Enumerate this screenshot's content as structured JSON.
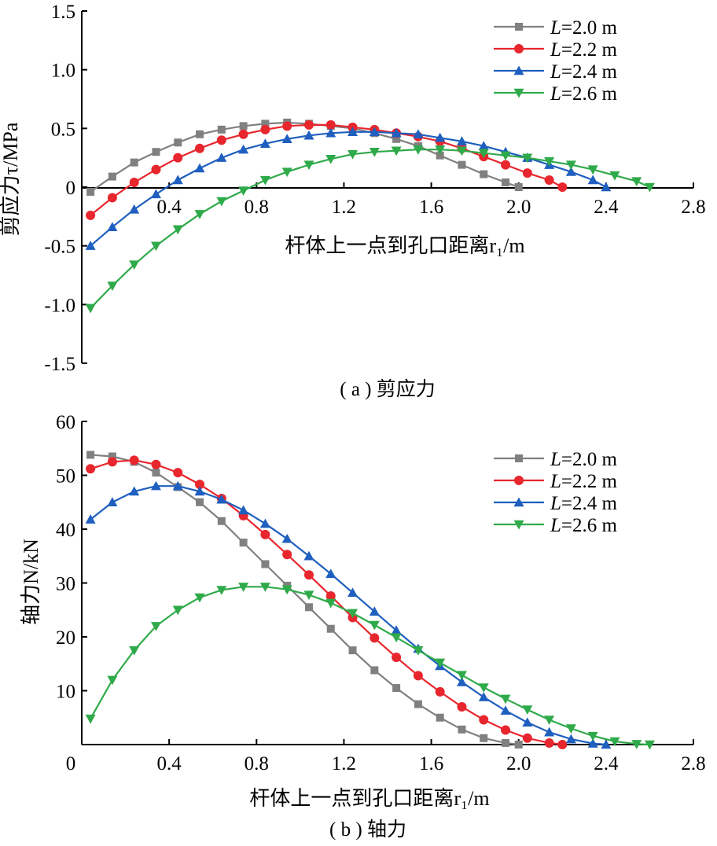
{
  "chart_data": [
    {
      "type": "line",
      "caption": "( a ) 剪应力",
      "xlabel": "杆体上一点到孔口距离r₁/m",
      "ylabel": "剪应力τ/MPa",
      "xlim": [
        0,
        2.8
      ],
      "ylim": [
        -1.5,
        1.5
      ],
      "xticks": [
        "0.4",
        "0.8",
        "1.2",
        "1.6",
        "2.0",
        "2.4",
        "2.8"
      ],
      "yticks": [
        "1.5",
        "1.0",
        "0.5",
        "0",
        "-0.5",
        "-1.0",
        "-1.5"
      ],
      "legend_position": "top-right",
      "series": [
        {
          "name": "L=2.0 m",
          "color": "#808080",
          "marker": "square",
          "x": [
            0.04,
            0.14,
            0.24,
            0.34,
            0.44,
            0.54,
            0.64,
            0.74,
            0.84,
            0.94,
            1.04,
            1.14,
            1.24,
            1.34,
            1.44,
            1.54,
            1.64,
            1.74,
            1.84,
            1.94,
            2.0
          ],
          "y": [
            -0.04,
            0.09,
            0.21,
            0.3,
            0.38,
            0.45,
            0.49,
            0.52,
            0.54,
            0.55,
            0.54,
            0.52,
            0.5,
            0.46,
            0.41,
            0.35,
            0.27,
            0.19,
            0.11,
            0.04,
            0.0
          ]
        },
        {
          "name": "L=2.2 m",
          "color": "#e8262d",
          "marker": "circle",
          "x": [
            0.04,
            0.14,
            0.24,
            0.34,
            0.44,
            0.54,
            0.64,
            0.74,
            0.84,
            0.94,
            1.04,
            1.14,
            1.24,
            1.34,
            1.44,
            1.54,
            1.64,
            1.74,
            1.84,
            1.94,
            2.04,
            2.14,
            2.2
          ],
          "y": [
            -0.24,
            -0.09,
            0.04,
            0.15,
            0.25,
            0.33,
            0.4,
            0.45,
            0.49,
            0.52,
            0.53,
            0.53,
            0.51,
            0.49,
            0.46,
            0.43,
            0.39,
            0.33,
            0.26,
            0.19,
            0.12,
            0.06,
            0.0
          ]
        },
        {
          "name": "L=2.4 m",
          "color": "#1f5fbf",
          "marker": "triangle-up",
          "x": [
            0.04,
            0.14,
            0.24,
            0.34,
            0.44,
            0.54,
            0.64,
            0.74,
            0.84,
            0.94,
            1.04,
            1.14,
            1.24,
            1.34,
            1.44,
            1.54,
            1.64,
            1.74,
            1.84,
            1.94,
            2.04,
            2.14,
            2.24,
            2.34,
            2.4
          ],
          "y": [
            -0.5,
            -0.34,
            -0.19,
            -0.06,
            0.06,
            0.16,
            0.25,
            0.32,
            0.37,
            0.41,
            0.44,
            0.46,
            0.47,
            0.47,
            0.46,
            0.45,
            0.42,
            0.39,
            0.35,
            0.3,
            0.25,
            0.19,
            0.13,
            0.06,
            0.0
          ]
        },
        {
          "name": "L=2.6 m",
          "color": "#2faa4a",
          "marker": "triangle-down",
          "x": [
            0.04,
            0.14,
            0.24,
            0.34,
            0.44,
            0.54,
            0.64,
            0.74,
            0.84,
            0.94,
            1.04,
            1.14,
            1.24,
            1.34,
            1.44,
            1.54,
            1.64,
            1.74,
            1.84,
            1.94,
            2.04,
            2.14,
            2.24,
            2.34,
            2.44,
            2.54,
            2.6
          ],
          "y": [
            -1.03,
            -0.84,
            -0.66,
            -0.5,
            -0.36,
            -0.23,
            -0.12,
            -0.03,
            0.06,
            0.13,
            0.19,
            0.24,
            0.28,
            0.3,
            0.31,
            0.32,
            0.32,
            0.31,
            0.29,
            0.27,
            0.25,
            0.22,
            0.19,
            0.15,
            0.1,
            0.05,
            0.0
          ]
        }
      ]
    },
    {
      "type": "line",
      "caption": "( b ) 轴力",
      "xlabel": "杆体上一点到孔口距离r₁/m",
      "ylabel": "轴力N/kN",
      "xlim": [
        0,
        2.8
      ],
      "ylim": [
        0,
        60
      ],
      "xticks": [
        "0",
        "0.4",
        "0.8",
        "1.2",
        "1.6",
        "2.0",
        "2.4",
        "2.8"
      ],
      "yticks": [
        "60",
        "50",
        "40",
        "30",
        "20",
        "10"
      ],
      "legend_position": "top-right",
      "series": [
        {
          "name": "L=2.0 m",
          "color": "#808080",
          "marker": "square",
          "x": [
            0.04,
            0.14,
            0.24,
            0.34,
            0.44,
            0.54,
            0.64,
            0.74,
            0.84,
            0.94,
            1.04,
            1.14,
            1.24,
            1.34,
            1.44,
            1.54,
            1.64,
            1.74,
            1.84,
            1.94,
            2.0
          ],
          "y": [
            53.8,
            53.5,
            52.5,
            50.5,
            47.8,
            45.0,
            41.5,
            37.5,
            33.5,
            29.5,
            25.5,
            21.5,
            17.5,
            13.8,
            10.5,
            7.5,
            5.0,
            2.8,
            1.2,
            0.3,
            0.0
          ]
        },
        {
          "name": "L=2.2 m",
          "color": "#e8262d",
          "marker": "circle",
          "x": [
            0.04,
            0.14,
            0.24,
            0.34,
            0.44,
            0.54,
            0.64,
            0.74,
            0.84,
            0.94,
            1.04,
            1.14,
            1.24,
            1.34,
            1.44,
            1.54,
            1.64,
            1.74,
            1.84,
            1.94,
            2.04,
            2.14,
            2.2
          ],
          "y": [
            51.2,
            52.5,
            52.8,
            52.0,
            50.5,
            48.3,
            45.7,
            42.5,
            39.0,
            35.3,
            31.5,
            27.6,
            23.6,
            19.8,
            16.2,
            12.8,
            9.8,
            7.0,
            4.6,
            2.7,
            1.2,
            0.3,
            0.0
          ]
        },
        {
          "name": "L=2.4 m",
          "color": "#1f5fbf",
          "marker": "triangle-up",
          "x": [
            0.04,
            0.14,
            0.24,
            0.34,
            0.44,
            0.54,
            0.64,
            0.74,
            0.84,
            0.94,
            1.04,
            1.14,
            1.24,
            1.34,
            1.44,
            1.54,
            1.64,
            1.74,
            1.84,
            1.94,
            2.04,
            2.14,
            2.24,
            2.34,
            2.4
          ],
          "y": [
            41.8,
            45.0,
            47.0,
            48.0,
            48.0,
            47.0,
            45.5,
            43.5,
            41.0,
            38.2,
            35.0,
            31.7,
            28.2,
            24.7,
            21.2,
            17.8,
            14.6,
            11.6,
            8.8,
            6.3,
            4.1,
            2.3,
            1.0,
            0.2,
            0.0
          ]
        },
        {
          "name": "L=2.6 m",
          "color": "#2faa4a",
          "marker": "triangle-down",
          "x": [
            0.04,
            0.14,
            0.24,
            0.34,
            0.44,
            0.54,
            0.64,
            0.74,
            0.84,
            0.94,
            1.04,
            1.14,
            1.24,
            1.34,
            1.44,
            1.54,
            1.64,
            1.74,
            1.84,
            1.94,
            2.04,
            2.14,
            2.24,
            2.34,
            2.44,
            2.54,
            2.6
          ],
          "y": [
            4.8,
            12.0,
            17.5,
            22.0,
            25.0,
            27.3,
            28.7,
            29.3,
            29.3,
            28.8,
            27.8,
            26.3,
            24.4,
            22.2,
            19.9,
            17.5,
            15.2,
            12.9,
            10.6,
            8.5,
            6.5,
            4.6,
            3.0,
            1.6,
            0.6,
            0.1,
            0.0
          ]
        }
      ]
    }
  ]
}
